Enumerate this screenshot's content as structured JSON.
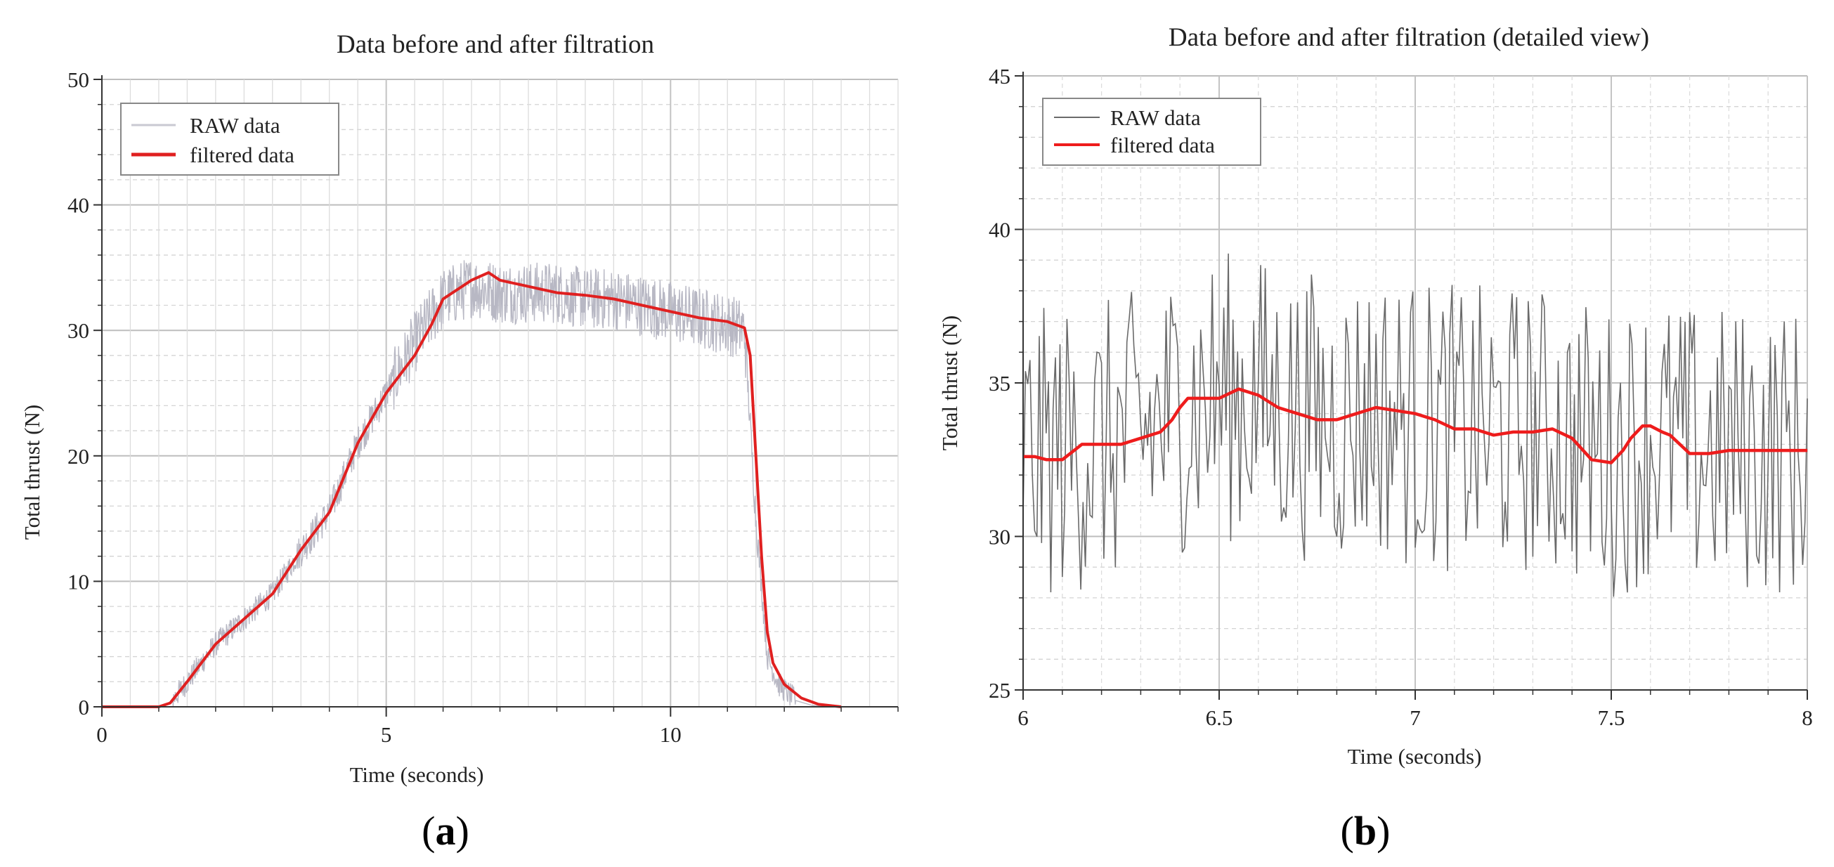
{
  "figure": {
    "panel_a_label": "a",
    "panel_b_label": "b"
  },
  "chart_data": [
    {
      "type": "line",
      "title": "Data before and after filtration",
      "xlabel": "Time (seconds)",
      "ylabel": "Total thrust (N)",
      "xlim": [
        0,
        14
      ],
      "ylim": [
        0,
        50
      ],
      "xticks": [
        0,
        5,
        10
      ],
      "xtick_labels": [
        "0",
        "5",
        "10"
      ],
      "yticks": [
        0,
        10,
        20,
        30,
        40,
        50
      ],
      "ytick_labels": [
        "0",
        "10",
        "20",
        "30",
        "40",
        "50"
      ],
      "grid": true,
      "legend": "top-left",
      "series": [
        {
          "name": "RAW data",
          "color": "#b8b8c4",
          "noise": 2.5,
          "x": [
            0,
            1,
            1.2,
            1.5,
            2,
            2.5,
            3,
            3.5,
            4,
            4.5,
            5,
            5.5,
            6,
            6.5,
            7,
            7.5,
            8,
            8.5,
            9,
            9.5,
            10,
            10.5,
            11,
            11.3,
            11.5,
            11.7,
            11.9,
            12.2,
            12.5,
            13
          ],
          "values": [
            0,
            0,
            0.3,
            2,
            5,
            7,
            9,
            12.5,
            15.5,
            21,
            25,
            29,
            32.5,
            33.5,
            33,
            33,
            33,
            32.5,
            32.5,
            32,
            31.5,
            31,
            30.5,
            30,
            15,
            4,
            1.8,
            0.5,
            0.1,
            0
          ]
        },
        {
          "name": "filtered data",
          "color": "#e02020",
          "x": [
            0,
            1,
            1.2,
            1.5,
            2,
            2.5,
            3,
            3.5,
            4,
            4.5,
            5,
            5.5,
            5.8,
            6,
            6.5,
            6.8,
            7,
            7.5,
            8,
            8.5,
            9,
            9.5,
            10,
            10.5,
            11,
            11.3,
            11.4,
            11.5,
            11.6,
            11.7,
            11.8,
            12,
            12.3,
            12.6,
            13
          ],
          "values": [
            0,
            0,
            0.3,
            2,
            5,
            7,
            9,
            12.5,
            15.5,
            21,
            25,
            28,
            30.5,
            32.5,
            34,
            34.6,
            34,
            33.5,
            33,
            32.8,
            32.5,
            32,
            31.5,
            31,
            30.7,
            30.2,
            28,
            20,
            12,
            6,
            3.5,
            1.8,
            0.7,
            0.2,
            0
          ]
        }
      ]
    },
    {
      "type": "line",
      "title": "Data before and after filtration (detailed view)",
      "xlabel": "Time (seconds)",
      "ylabel": "Total thrust (N)",
      "xlim": [
        6,
        8
      ],
      "ylim": [
        25,
        45
      ],
      "xticks": [
        6,
        6.5,
        7,
        7.5,
        8
      ],
      "xtick_labels": [
        "6",
        "6.5",
        "7",
        "7.5",
        "8"
      ],
      "yticks": [
        25,
        30,
        35,
        40,
        45
      ],
      "ytick_labels": [
        "25",
        "30",
        "35",
        "40",
        "45"
      ],
      "grid": true,
      "legend": "top-left",
      "series": [
        {
          "name": "RAW data",
          "color": "#6a6a6a",
          "noise": 3.3,
          "x": [
            6,
            6.1,
            6.2,
            6.3,
            6.4,
            6.5,
            6.6,
            6.7,
            6.8,
            6.9,
            7,
            7.1,
            7.2,
            7.3,
            7.4,
            7.5,
            7.6,
            7.7,
            7.8,
            7.9,
            8
          ],
          "values": [
            32.6,
            32.8,
            33,
            33.3,
            34.2,
            34.6,
            34.5,
            34,
            33.8,
            34.1,
            33.7,
            33.5,
            33.4,
            33.5,
            33.2,
            32.7,
            33.3,
            32.8,
            32.8,
            32.8,
            32.8
          ]
        },
        {
          "name": "filtered data",
          "color": "#ee1c1c",
          "x": [
            6,
            6.03,
            6.06,
            6.1,
            6.15,
            6.2,
            6.25,
            6.3,
            6.35,
            6.38,
            6.4,
            6.42,
            6.45,
            6.5,
            6.55,
            6.6,
            6.65,
            6.7,
            6.75,
            6.8,
            6.85,
            6.9,
            6.95,
            7,
            7.05,
            7.1,
            7.15,
            7.2,
            7.25,
            7.3,
            7.35,
            7.4,
            7.45,
            7.5,
            7.53,
            7.55,
            7.58,
            7.6,
            7.63,
            7.65,
            7.7,
            7.75,
            7.8,
            7.85,
            7.9,
            7.95,
            8
          ],
          "values": [
            32.6,
            32.6,
            32.5,
            32.5,
            33,
            33,
            33,
            33.2,
            33.4,
            33.8,
            34.2,
            34.5,
            34.5,
            34.5,
            34.8,
            34.6,
            34.2,
            34,
            33.8,
            33.8,
            34,
            34.2,
            34.1,
            34,
            33.8,
            33.5,
            33.5,
            33.3,
            33.4,
            33.4,
            33.5,
            33.2,
            32.5,
            32.4,
            32.8,
            33.2,
            33.6,
            33.6,
            33.4,
            33.3,
            32.7,
            32.7,
            32.8,
            32.8,
            32.8,
            32.8,
            32.8
          ]
        }
      ]
    }
  ]
}
